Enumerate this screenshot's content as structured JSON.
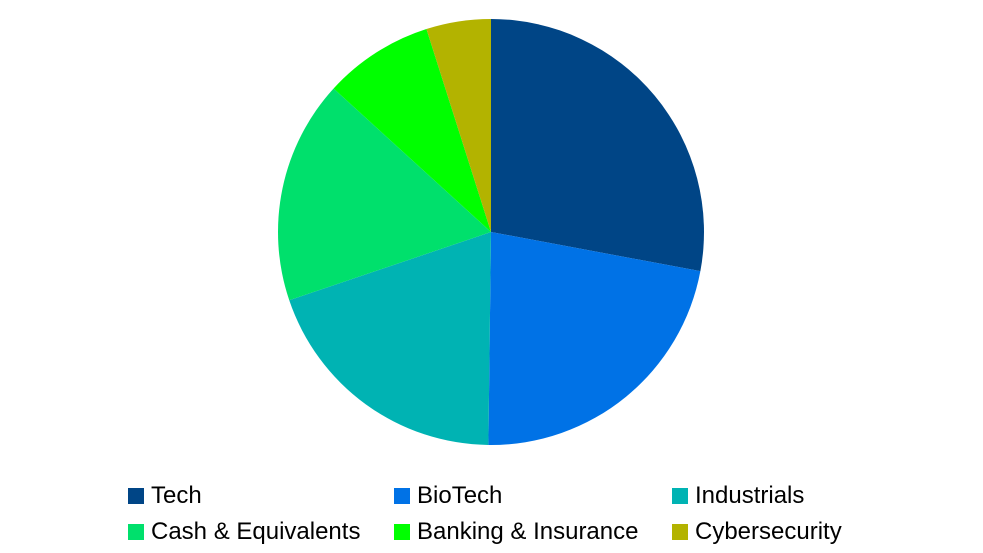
{
  "chart_data": {
    "type": "pie",
    "title": "",
    "start_angle_deg": 0,
    "direction": "clockwise",
    "legend_position": "bottom",
    "slices": [
      {
        "label": "Tech",
        "value": 28.5,
        "color": "#004586"
      },
      {
        "label": "BioTech",
        "value": 22.7,
        "color": "#0072e6"
      },
      {
        "label": "Industrials",
        "value": 20.0,
        "color": "#00b3b3"
      },
      {
        "label": "Cash & Equivalents",
        "value": 17.3,
        "color": "#00e06c"
      },
      {
        "label": "Banking & Insurance",
        "value": 8.5,
        "color": "#00ff00"
      },
      {
        "label": "Cybersecurity",
        "value": 5.0,
        "color": "#b3b300"
      }
    ]
  }
}
